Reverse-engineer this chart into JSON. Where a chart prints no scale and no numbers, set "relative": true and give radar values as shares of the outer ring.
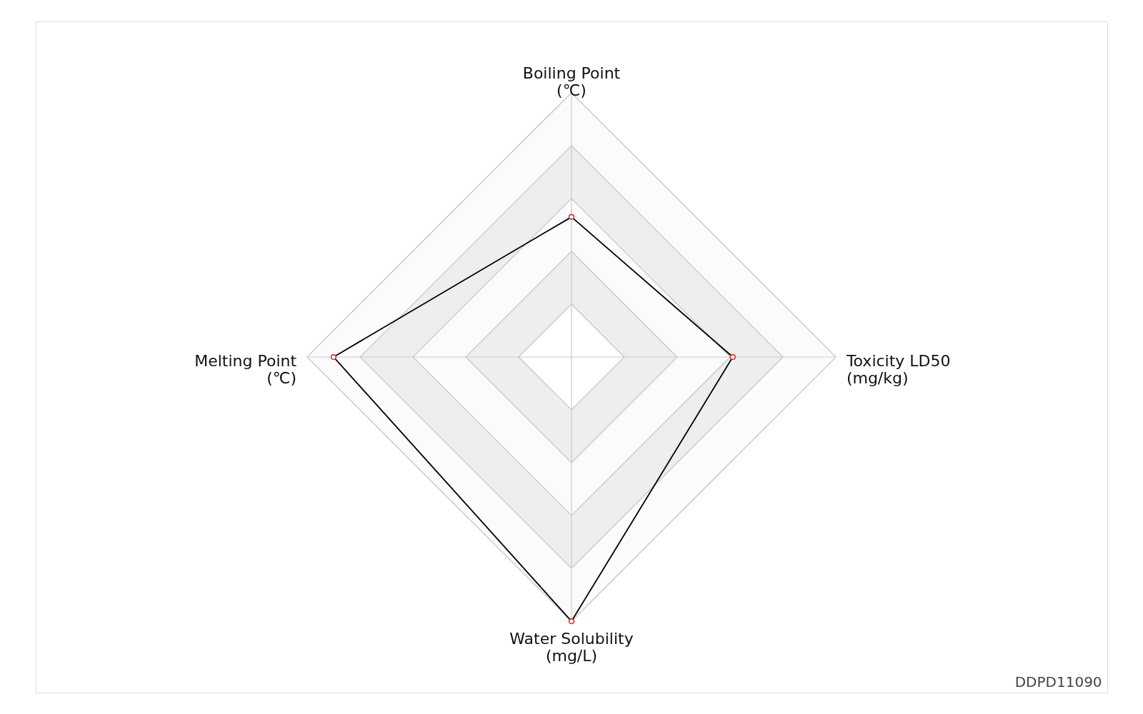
{
  "chart_data": {
    "type": "radar",
    "relative": true,
    "categories": [
      "Boiling Point\n(℃)",
      "Toxicity LD50\n(mg/kg)",
      "Water Solubility\n(mg/L)",
      "Melting Point\n(℃)"
    ],
    "series": [
      {
        "color": "#000000",
        "values": [
          0.53,
          0.61,
          1.0,
          0.9
        ]
      }
    ],
    "marker": "circle",
    "annotations": [
      "DDPD11090"
    ]
  }
}
